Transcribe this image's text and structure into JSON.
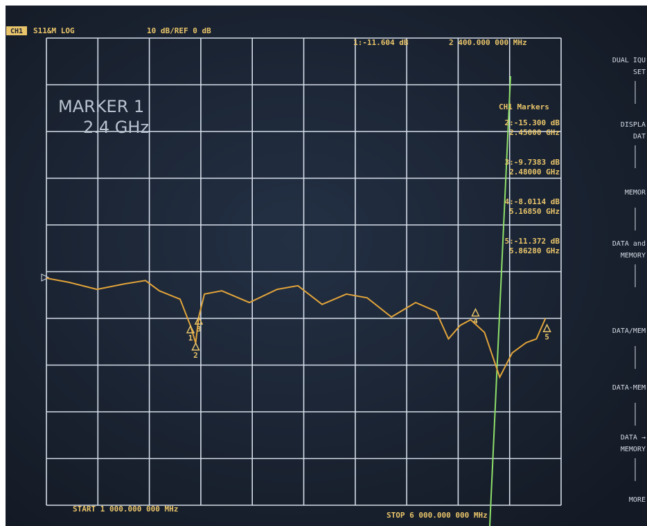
{
  "screen": {
    "channel": "CH1",
    "measurement": "S11&M LOG",
    "scale": "10 dB/REF 0 dB",
    "marker_readout": "1:-11.604 dB",
    "marker_frequency": "2 400.000 000 MHz",
    "annotation": [
      "MARKER 1",
      "2.4 GHz"
    ],
    "markers_title": "CH1 Markers",
    "start": "START 1 000.000 000 MHz",
    "stop": "STOP 6 000.000 000 MHz",
    "softkeys": [
      [
        "DUAL IQU",
        "SET"
      ],
      [
        "DISPLA",
        "DAT"
      ],
      [
        "MEMOR"
      ],
      [
        "DATA and",
        "MEMORY"
      ],
      [
        "DATA/MEM"
      ],
      [
        "DATA-MEM"
      ],
      [
        "DATA →",
        "MEMORY"
      ],
      [
        "MORE"
      ]
    ]
  },
  "chart_data": {
    "type": "line",
    "xlim": [
      1000,
      6000
    ],
    "ylim": [
      -50,
      50
    ],
    "color": "#e2a43a",
    "x": [
      1000,
      1222,
      1491,
      1760,
      1962,
      2097,
      2299,
      2400,
      2450,
      2480,
      2535,
      2703,
      2972,
      3241,
      3443,
      3678,
      3914,
      4116,
      4351,
      4587,
      4785,
      4906,
      5020,
      5121,
      5256,
      5404,
      5525,
      5660,
      5760,
      5848
    ],
    "values": [
      -1.4,
      -2.3,
      -3.8,
      -2.6,
      -1.9,
      -4.1,
      -5.9,
      -11.6,
      -15.3,
      -9.7,
      -4.8,
      -4.1,
      -6.6,
      -3.8,
      -3.0,
      -7.0,
      -4.8,
      -5.6,
      -9.7,
      -6.6,
      -8.5,
      -14.4,
      -11.5,
      -10.3,
      -13.0,
      -22.6,
      -17.4,
      -15.2,
      -14.4,
      -10.0
    ],
    "markers": [
      {
        "label": "1",
        "x": 2400,
        "value": -11.604
      },
      {
        "label": "2",
        "x": 2450,
        "value": -15.3,
        "readout": "2:-15.300 dB",
        "frequency": "2.45000 GHz"
      },
      {
        "label": "3",
        "x": 2480,
        "value": -9.7383,
        "readout": "3:-9.7383 dB",
        "frequency": "2.48000 GHz"
      },
      {
        "label": "4",
        "x": 5168.5,
        "value": -8.0114,
        "readout": "4:-8.0114 dB",
        "frequency": "5.16850 GHz"
      },
      {
        "label": "5",
        "x": 5862.8,
        "value": -11.372,
        "readout": "5:-11.372 dB",
        "frequency": "5.86280 GHz"
      }
    ]
  }
}
